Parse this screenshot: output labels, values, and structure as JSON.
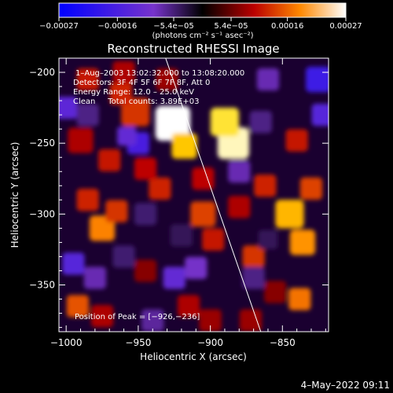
{
  "chart_data": {
    "type": "heatmap",
    "title": "Reconstructed RHESSI Image",
    "xlabel": "Heliocentric X (arcsec)",
    "ylabel": "Heliocentric Y (arcsec)",
    "xlim": [
      -1005,
      -818
    ],
    "ylim": [
      -383,
      -190
    ],
    "xticks": [
      -1000,
      -950,
      -900,
      -850
    ],
    "xtick_labels": [
      "−1000",
      "−950",
      "−900",
      "−850"
    ],
    "yticks": [
      -200,
      -250,
      -300,
      -350
    ],
    "ytick_labels": [
      "−200",
      "−250",
      "−300",
      "−350"
    ],
    "colorbar": {
      "min": -0.00027,
      "max": 0.00027,
      "ticks": [
        -0.00027,
        -0.00016,
        -5.4e-05,
        5.4e-05,
        0.00016,
        0.00027
      ],
      "tick_labels": [
        "−0.00027",
        "−0.00016",
        "−5.4e−05",
        "5.4e−05",
        "0.00016",
        "0.00027"
      ],
      "units": "(photons cm⁻² s⁻¹ asec⁻²)"
    },
    "annotations": [
      "1–Aug–2003 13:02:32.000 to 13:08:20.000",
      "Detectors: 3F 4F 5F 6F 7F 8F, Att 0",
      "Energy Range: 12.0 – 25.0 keV",
      "Clean     Total counts: 3.89E+03"
    ],
    "peak_label": "Position of Peak = [−926,−236]",
    "peak": [
      -926,
      -236
    ],
    "limb_line": [
      [
        -931,
        -190
      ],
      [
        -865,
        -383
      ]
    ],
    "grid": false,
    "legend": "none",
    "grid_cells": [
      {
        "x": -926,
        "y": -236,
        "v": 0.00027,
        "s": 22
      },
      {
        "x": -884,
        "y": -250,
        "v": 0.00026,
        "s": 20
      },
      {
        "x": -890,
        "y": -235,
        "v": 0.00024,
        "s": 18
      },
      {
        "x": -918,
        "y": -252,
        "v": 0.00022,
        "s": 16
      },
      {
        "x": -952,
        "y": -228,
        "v": 0.00013,
        "s": 18
      },
      {
        "x": -962,
        "y": -215,
        "v": 0.00012,
        "s": 14
      },
      {
        "x": -935,
        "y": -282,
        "v": 0.00012,
        "s": 14
      },
      {
        "x": -905,
        "y": -300,
        "v": 0.00014,
        "s": 16
      },
      {
        "x": -898,
        "y": -318,
        "v": 0.00011,
        "s": 14
      },
      {
        "x": -870,
        "y": -330,
        "v": 0.00013,
        "s": 14
      },
      {
        "x": -845,
        "y": -300,
        "v": 0.00021,
        "s": 18
      },
      {
        "x": -836,
        "y": -320,
        "v": 0.00019,
        "s": 16
      },
      {
        "x": -830,
        "y": -282,
        "v": 0.00014,
        "s": 14
      },
      {
        "x": -838,
        "y": -360,
        "v": 0.00017,
        "s": 14
      },
      {
        "x": -840,
        "y": -248,
        "v": 0.00011,
        "s": 14
      },
      {
        "x": -862,
        "y": -280,
        "v": 0.00012,
        "s": 14
      },
      {
        "x": -975,
        "y": -310,
        "v": 0.00018,
        "s": 16
      },
      {
        "x": -965,
        "y": -298,
        "v": 0.00013,
        "s": 14
      },
      {
        "x": -985,
        "y": -290,
        "v": 0.00012,
        "s": 14
      },
      {
        "x": -990,
        "y": -248,
        "v": 9e-05,
        "s": 16
      },
      {
        "x": -970,
        "y": -262,
        "v": 0.00011,
        "s": 14
      },
      {
        "x": -945,
        "y": -268,
        "v": 0.0001,
        "s": 14
      },
      {
        "x": -985,
        "y": -205,
        "v": 0.00011,
        "s": 14
      },
      {
        "x": -960,
        "y": -200,
        "v": 9e-05,
        "s": 14
      },
      {
        "x": -930,
        "y": -205,
        "v": 8e-05,
        "s": 14
      },
      {
        "x": -905,
        "y": -275,
        "v": 0.0001,
        "s": 14
      },
      {
        "x": -880,
        "y": -295,
        "v": 9e-05,
        "s": 14
      },
      {
        "x": -945,
        "y": -340,
        "v": 7e-05,
        "s": 14
      },
      {
        "x": -992,
        "y": -365,
        "v": 0.00015,
        "s": 14
      },
      {
        "x": -975,
        "y": -372,
        "v": 9e-05,
        "s": 14
      },
      {
        "x": -915,
        "y": -365,
        "v": 9e-05,
        "s": 14
      },
      {
        "x": -900,
        "y": -375,
        "v": 8e-05,
        "s": 14
      },
      {
        "x": -855,
        "y": -355,
        "v": 7e-05,
        "s": 14
      },
      {
        "x": -872,
        "y": -375,
        "v": 8e-05,
        "s": 14
      },
      {
        "x": -960,
        "y": -330,
        "v": -5e-05,
        "s": 14
      },
      {
        "x": -950,
        "y": -250,
        "v": -0.00016,
        "s": 14
      },
      {
        "x": -958,
        "y": -245,
        "v": -0.00012,
        "s": 12
      },
      {
        "x": -1000,
        "y": -225,
        "v": -0.00013,
        "s": 14
      },
      {
        "x": -985,
        "y": -230,
        "v": -6e-05,
        "s": 14
      },
      {
        "x": -995,
        "y": -335,
        "v": -0.00014,
        "s": 14
      },
      {
        "x": -980,
        "y": -345,
        "v": -8e-05,
        "s": 14
      },
      {
        "x": -925,
        "y": -345,
        "v": -0.00012,
        "s": 14
      },
      {
        "x": -910,
        "y": -338,
        "v": -9e-05,
        "s": 14
      },
      {
        "x": -870,
        "y": -345,
        "v": -6e-05,
        "s": 14
      },
      {
        "x": -880,
        "y": -270,
        "v": -8e-05,
        "s": 14
      },
      {
        "x": -865,
        "y": -235,
        "v": -6e-05,
        "s": 14
      },
      {
        "x": -825,
        "y": -205,
        "v": -0.00018,
        "s": 16
      },
      {
        "x": -822,
        "y": -230,
        "v": -0.00014,
        "s": 14
      },
      {
        "x": -860,
        "y": -205,
        "v": -8e-05,
        "s": 14
      },
      {
        "x": -920,
        "y": -315,
        "v": -4e-05,
        "s": 14
      },
      {
        "x": -860,
        "y": -318,
        "v": -4e-05,
        "s": 12
      },
      {
        "x": -940,
        "y": -375,
        "v": -7e-05,
        "s": 14
      },
      {
        "x": -945,
        "y": -300,
        "v": -5e-05,
        "s": 14
      }
    ]
  }
}
